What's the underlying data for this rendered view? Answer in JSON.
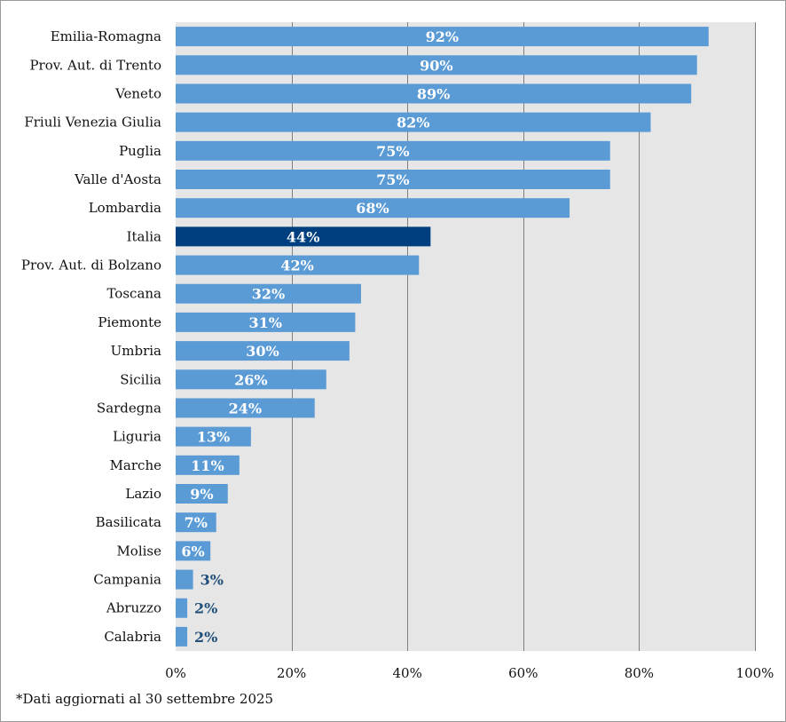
{
  "chart_data": {
    "type": "bar",
    "orientation": "horizontal",
    "categories": [
      "Emilia-Romagna",
      "Prov. Aut. di Trento",
      "Veneto",
      "Friuli Venezia Giulia",
      "Puglia",
      "Valle d'Aosta",
      "Lombardia",
      "Italia",
      "Prov. Aut. di Bolzano",
      "Toscana",
      "Piemonte",
      "Umbria",
      "Sicilia",
      "Sardegna",
      "Liguria",
      "Marche",
      "Lazio",
      "Basilicata",
      "Molise",
      "Campania",
      "Abruzzo",
      "Calabria"
    ],
    "values": [
      92,
      90,
      89,
      82,
      75,
      75,
      68,
      44,
      42,
      32,
      31,
      30,
      26,
      24,
      13,
      11,
      9,
      7,
      6,
      3,
      2,
      2
    ],
    "value_labels": [
      "92%",
      "90%",
      "89%",
      "82%",
      "75%",
      "75%",
      "68%",
      "44%",
      "42%",
      "32%",
      "31%",
      "30%",
      "26%",
      "24%",
      "13%",
      "11%",
      "9%",
      "7%",
      "6%",
      "3%",
      "2%",
      "2%"
    ],
    "highlight": "Italia",
    "x_ticks": [
      "0%",
      "20%",
      "40%",
      "60%",
      "80%",
      "100%"
    ],
    "xlim": [
      0,
      100
    ],
    "grid": true,
    "colors": {
      "bar": "#5b9bd5",
      "highlight_bar": "#003f7f",
      "plot_background": "#e6e6e6",
      "gridline": "#7f7f7f",
      "label_inside": "#ffffff",
      "label_outside": "#1f4e79"
    }
  },
  "footnote": "*Dati aggiornati al 30 settembre 2025"
}
